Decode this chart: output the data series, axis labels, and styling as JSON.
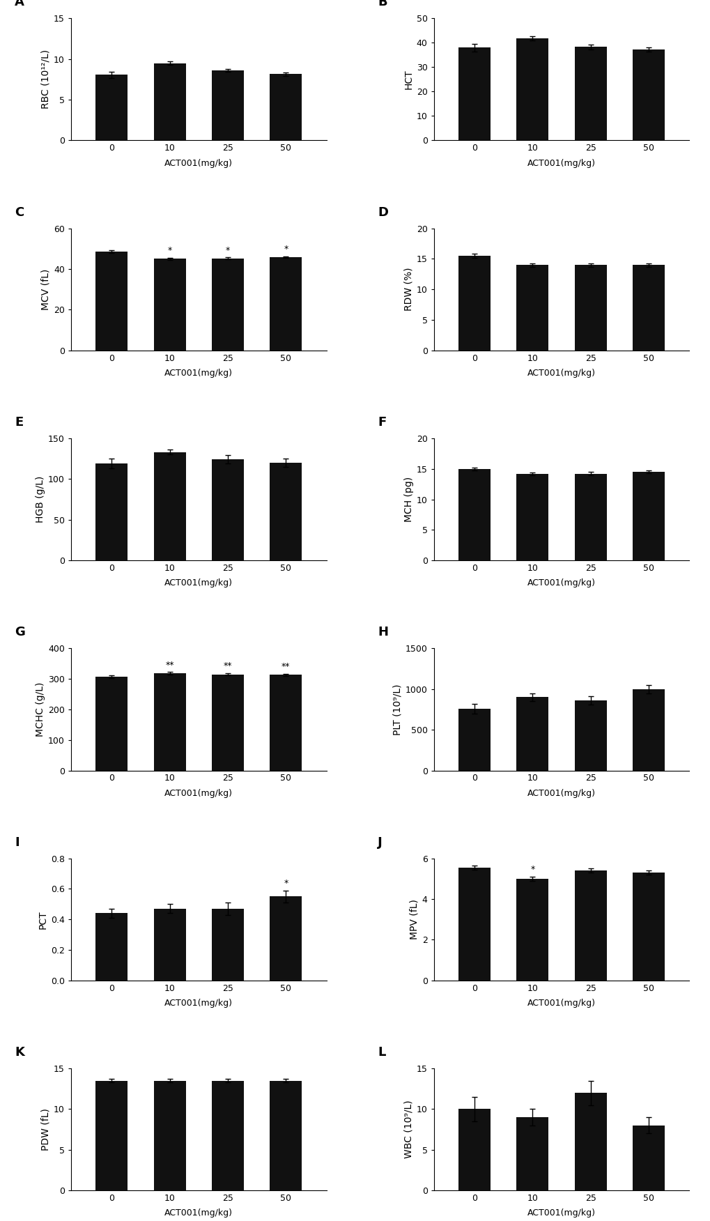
{
  "panels": [
    {
      "label": "A",
      "ylabel": "RBC (10¹²/L)",
      "yticks": [
        0,
        5,
        10,
        15
      ],
      "ylim": [
        0,
        15
      ],
      "values": [
        8.05,
        9.5,
        8.6,
        8.15
      ],
      "errors": [
        0.35,
        0.2,
        0.2,
        0.2
      ],
      "sig": [
        "",
        "",
        "",
        ""
      ]
    },
    {
      "label": "B",
      "ylabel": "HCT",
      "yticks": [
        0,
        10,
        20,
        30,
        40,
        50
      ],
      "ylim": [
        0,
        50
      ],
      "values": [
        38.0,
        41.8,
        38.3,
        37.3
      ],
      "errors": [
        1.5,
        0.8,
        1.0,
        0.8
      ],
      "sig": [
        "",
        "",
        "",
        ""
      ]
    },
    {
      "label": "C",
      "ylabel": "MCV (fL)",
      "yticks": [
        0,
        20,
        40,
        60
      ],
      "ylim": [
        0,
        60
      ],
      "values": [
        48.5,
        45.0,
        45.3,
        45.8
      ],
      "errors": [
        0.6,
        0.5,
        0.5,
        0.4
      ],
      "sig": [
        "",
        "*",
        "*",
        "*"
      ]
    },
    {
      "label": "D",
      "ylabel": "RDW (%)",
      "yticks": [
        0,
        5,
        10,
        15,
        20
      ],
      "ylim": [
        0,
        20
      ],
      "values": [
        15.5,
        14.0,
        14.0,
        14.0
      ],
      "errors": [
        0.3,
        0.3,
        0.3,
        0.3
      ],
      "sig": [
        "",
        "",
        "",
        ""
      ]
    },
    {
      "label": "E",
      "ylabel": "HGB (g/L)",
      "yticks": [
        0,
        50,
        100,
        150
      ],
      "ylim": [
        0,
        150
      ],
      "values": [
        119.0,
        133.0,
        124.0,
        120.0
      ],
      "errors": [
        6.0,
        3.0,
        5.0,
        5.0
      ],
      "sig": [
        "",
        "",
        "",
        ""
      ]
    },
    {
      "label": "F",
      "ylabel": "MCH (pg)",
      "yticks": [
        0,
        5,
        10,
        15,
        20
      ],
      "ylim": [
        0,
        20
      ],
      "values": [
        15.0,
        14.2,
        14.2,
        14.5
      ],
      "errors": [
        0.2,
        0.2,
        0.3,
        0.2
      ],
      "sig": [
        "",
        "",
        "",
        ""
      ]
    },
    {
      "label": "G",
      "ylabel": "MCHC (g/L)",
      "yticks": [
        0,
        100,
        200,
        300,
        400
      ],
      "ylim": [
        0,
        400
      ],
      "values": [
        307.0,
        318.0,
        315.0,
        313.0
      ],
      "errors": [
        5.0,
        4.0,
        4.0,
        4.0
      ],
      "sig": [
        "",
        "**",
        "**",
        "**"
      ]
    },
    {
      "label": "H",
      "ylabel": "PLT (10⁹/L)",
      "yticks": [
        0,
        500,
        1000,
        1500
      ],
      "ylim": [
        0,
        1500
      ],
      "values": [
        760.0,
        900.0,
        860.0,
        1000.0
      ],
      "errors": [
        60.0,
        50.0,
        50.0,
        50.0
      ],
      "sig": [
        "",
        "",
        "",
        ""
      ]
    },
    {
      "label": "I",
      "ylabel": "PCT",
      "yticks": [
        0.0,
        0.2,
        0.4,
        0.6,
        0.8
      ],
      "ylim": [
        0.0,
        0.8
      ],
      "values": [
        0.44,
        0.47,
        0.47,
        0.55
      ],
      "errors": [
        0.03,
        0.03,
        0.04,
        0.04
      ],
      "sig": [
        "",
        "",
        "",
        "*"
      ]
    },
    {
      "label": "J",
      "ylabel": "MPV (fL)",
      "yticks": [
        0,
        2,
        4,
        6
      ],
      "ylim": [
        0,
        6
      ],
      "values": [
        5.55,
        5.0,
        5.4,
        5.3
      ],
      "errors": [
        0.1,
        0.1,
        0.1,
        0.1
      ],
      "sig": [
        "",
        "*",
        "",
        ""
      ]
    },
    {
      "label": "K",
      "ylabel": "PDW (fL)",
      "yticks": [
        0,
        5,
        10,
        15
      ],
      "ylim": [
        0,
        15
      ],
      "values": [
        13.5,
        13.5,
        13.5,
        13.5
      ],
      "errors": [
        0.2,
        0.2,
        0.2,
        0.2
      ],
      "sig": [
        "",
        "",
        "",
        ""
      ]
    },
    {
      "label": "L",
      "ylabel": "WBC (10⁹/L)",
      "yticks": [
        0,
        5,
        10,
        15
      ],
      "ylim": [
        0,
        15
      ],
      "values": [
        10.0,
        9.0,
        12.0,
        8.0
      ],
      "errors": [
        1.5,
        1.0,
        1.5,
        1.0
      ],
      "sig": [
        "",
        "",
        "",
        ""
      ]
    }
  ],
  "categories": [
    "0",
    "10",
    "25",
    "50"
  ],
  "bar_color": "#111111",
  "bar_width": 0.55,
  "xlabel": "ACT001(mg/kg)",
  "background_color": "#ffffff",
  "sig_fontsize": 9,
  "panel_label_fontsize": 13,
  "ylabel_fontsize": 10,
  "tick_fontsize": 9,
  "xlabel_fontsize": 9
}
